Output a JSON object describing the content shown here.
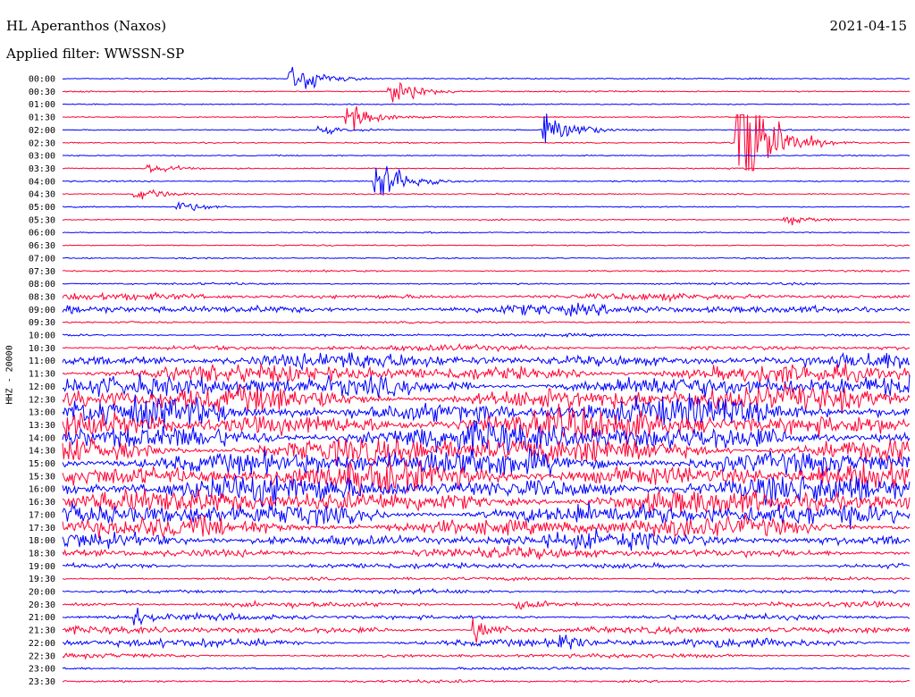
{
  "header": {
    "station": "HL Aperanthos (Naxos)",
    "filter": "Applied filter: WWSSN-SP",
    "date": "2021-04-15",
    "channel": "HHZ - 20000"
  },
  "colors": {
    "trace_a": "#0000ff",
    "trace_b": "#ff0033",
    "background": "#ffffff"
  },
  "chart_data": {
    "type": "line",
    "title": "HL Aperanthos (Naxos)",
    "subtitle": "Applied filter: WWSSN-SP",
    "ylabel": "HHZ - 20000",
    "y_tick_labels": [
      "00:00",
      "00:30",
      "01:00",
      "01:30",
      "02:00",
      "02:30",
      "03:00",
      "03:30",
      "04:00",
      "04:30",
      "05:00",
      "05:30",
      "06:00",
      "06:30",
      "07:00",
      "07:30",
      "08:00",
      "08:30",
      "09:00",
      "09:30",
      "10:00",
      "10:30",
      "11:00",
      "11:30",
      "12:00",
      "12:30",
      "13:00",
      "13:30",
      "14:00",
      "14:30",
      "15:00",
      "15:30",
      "16:00",
      "16:30",
      "17:00",
      "17:30",
      "18:00",
      "18:30",
      "19:00",
      "19:30",
      "20:00",
      "20:30",
      "21:00",
      "21:30",
      "22:00",
      "22:30",
      "23:00",
      "23:30"
    ],
    "x_minutes_per_line": 30,
    "trace_colors_alternate": [
      "blue",
      "red"
    ],
    "row_activity": [
      0.2,
      0.2,
      0.15,
      0.2,
      0.2,
      0.2,
      0.15,
      0.2,
      0.2,
      0.2,
      0.2,
      0.2,
      0.2,
      0.2,
      0.2,
      0.25,
      0.3,
      0.9,
      1.4,
      0.3,
      0.4,
      0.8,
      2.2,
      2.5,
      3.0,
      3.5,
      3.8,
      4.0,
      4.2,
      4.0,
      4.0,
      4.0,
      3.8,
      3.5,
      3.2,
      2.8,
      2.2,
      1.5,
      0.8,
      0.5,
      0.6,
      0.7,
      0.8,
      1.0,
      1.2,
      0.6,
      0.4,
      0.4
    ],
    "events": [
      {
        "time": "00:00",
        "at_minute": 8.0,
        "amplitude": 1.8
      },
      {
        "time": "00:30",
        "at_minute": 11.5,
        "amplitude": 1.5
      },
      {
        "time": "01:30",
        "at_minute": 10.0,
        "amplitude": 1.4
      },
      {
        "time": "02:00",
        "at_minute": 17.0,
        "amplitude": 2.0
      },
      {
        "time": "02:00",
        "at_minute": 9.0,
        "amplitude": 0.5
      },
      {
        "time": "02:30",
        "at_minute": 23.8,
        "amplitude": 10.0
      },
      {
        "time": "03:30",
        "at_minute": 3.0,
        "amplitude": 0.5
      },
      {
        "time": "04:00",
        "at_minute": 11.0,
        "amplitude": 2.6
      },
      {
        "time": "04:30",
        "at_minute": 2.5,
        "amplitude": 0.7
      },
      {
        "time": "05:00",
        "at_minute": 4.0,
        "amplitude": 0.6
      },
      {
        "time": "05:30",
        "at_minute": 25.5,
        "amplitude": 0.6
      },
      {
        "time": "20:30",
        "at_minute": 16.0,
        "amplitude": 0.7
      },
      {
        "time": "21:00",
        "at_minute": 2.5,
        "amplitude": 0.8
      },
      {
        "time": "21:30",
        "at_minute": 14.5,
        "amplitude": 1.0
      },
      {
        "time": "22:00",
        "at_minute": 17.5,
        "amplitude": 1.2
      }
    ]
  }
}
